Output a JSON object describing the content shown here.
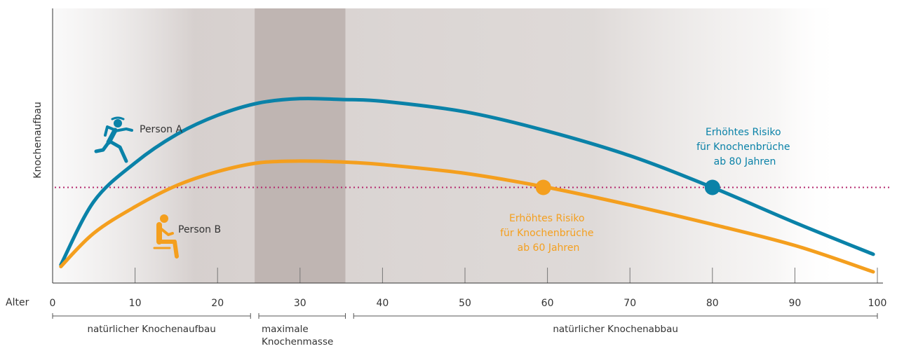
{
  "chart_data": {
    "type": "line",
    "title": "",
    "ylabel": "Knochenaufbau",
    "xlabel": "Alter",
    "xlim": [
      0,
      100
    ],
    "xticks": [
      0,
      10,
      20,
      30,
      40,
      50,
      60,
      70,
      80,
      90,
      100
    ],
    "grid": false,
    "threshold_line": {
      "label": "",
      "color": "#b5286e"
    },
    "peak_band": {
      "from": 24.5,
      "to": 35.5
    },
    "phases": [
      {
        "label_lines": [
          "natürlicher Knochenaufbau"
        ],
        "from": 0,
        "to": 24
      },
      {
        "label_lines": [
          "maximale",
          "Knochenmasse"
        ],
        "from": 25,
        "to": 35.5
      },
      {
        "label_lines": [
          "natürlicher Knochenabbau"
        ],
        "from": 36.5,
        "to": 100
      }
    ],
    "series": [
      {
        "name": "Person A",
        "icon": "runner-icon",
        "color": "#0a82a8",
        "x": [
          1,
          5,
          10,
          15,
          20,
          25,
          30,
          35,
          40,
          50,
          60,
          70,
          80,
          90,
          99.5
        ],
        "y": [
          4,
          40,
          62,
          78,
          89,
          96,
          98.5,
          98,
          97,
          91,
          80,
          66,
          48,
          28,
          10
        ],
        "risk_point": {
          "x": 80,
          "y": 48
        },
        "risk_lines": [
          "Erhöhtes Risiko",
          "für Knochenbrüche",
          "ab 80 Jahren"
        ]
      },
      {
        "name": "Person B",
        "icon": "sitting-person-icon",
        "color": "#f49f1e",
        "x": [
          1,
          5,
          10,
          15,
          20,
          25,
          30,
          35,
          40,
          50,
          60,
          70,
          80,
          90,
          99.5
        ],
        "y": [
          3,
          22,
          37,
          49,
          57,
          62,
          63,
          62.5,
          61,
          56,
          48,
          38,
          27,
          15,
          0
        ],
        "risk_point": {
          "x": 59.5,
          "y": 48
        },
        "risk_lines": [
          "Erhöhtes Risiko",
          "für Knochenbrüche",
          "ab 60 Jahren"
        ]
      }
    ]
  }
}
